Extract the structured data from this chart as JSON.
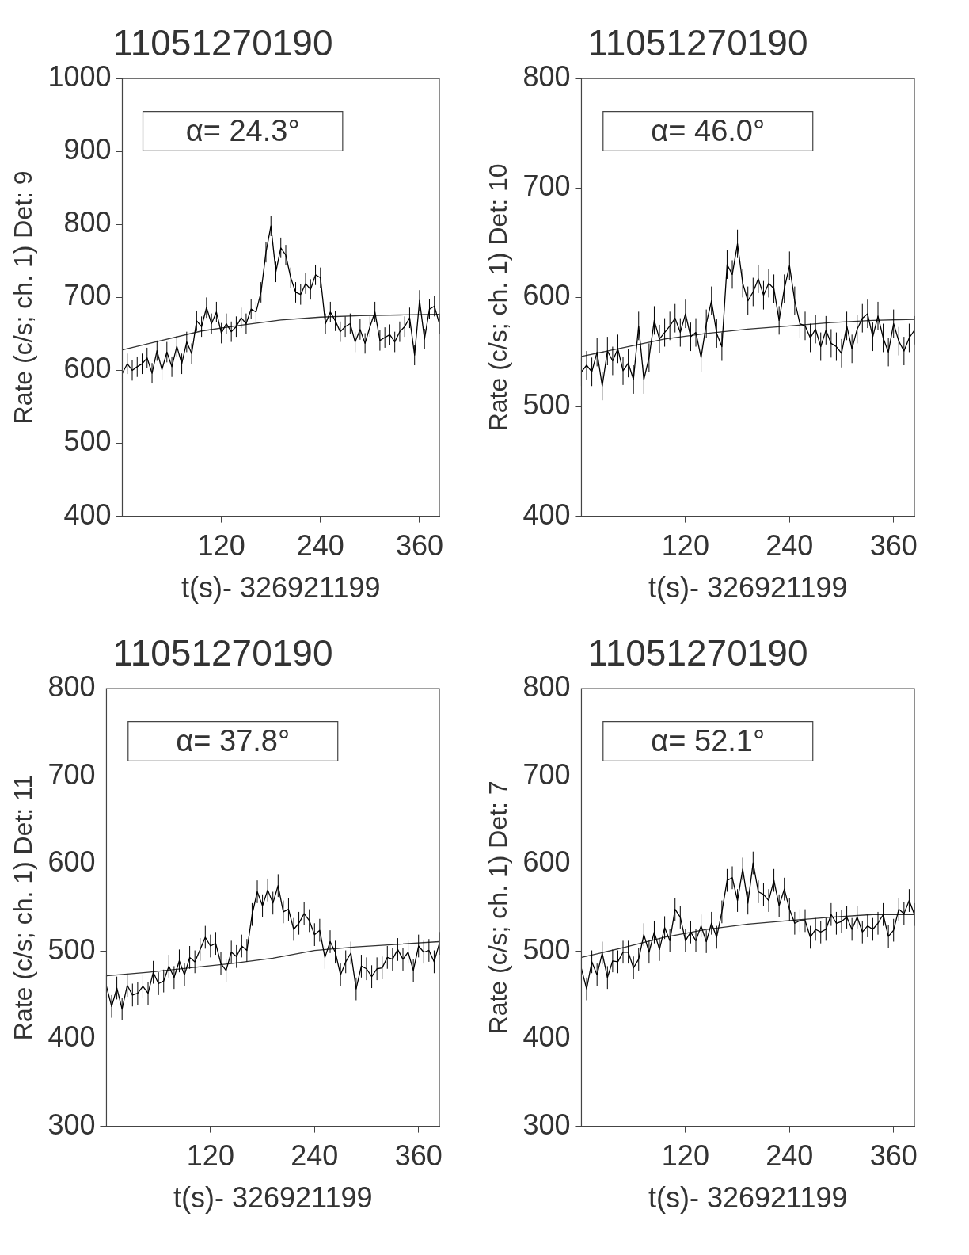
{
  "chart_data": [
    {
      "type": "line",
      "title": "11051270190",
      "xlabel": "t(s)- 326921199",
      "ylabel": "Rate (c/s; ch. 1) Det: 9",
      "annotations": [
        "α= 24.3°"
      ],
      "xlim": [
        0,
        384
      ],
      "xticks": [
        120,
        240,
        360
      ],
      "ylim": [
        400,
        1000
      ],
      "yticks": [
        400,
        500,
        600,
        700,
        800,
        900,
        1000
      ],
      "marker": "none",
      "line_style": "solid",
      "series": [
        {
          "type": "line",
          "color": "#000000",
          "x": [
            0,
            6,
            12,
            18,
            24,
            30,
            36,
            42,
            48,
            54,
            60,
            66,
            72,
            78,
            84,
            90,
            96,
            102,
            108,
            114,
            120,
            126,
            132,
            138,
            144,
            150,
            156,
            162,
            168,
            174,
            180,
            186,
            192,
            198,
            204,
            210,
            216,
            222,
            228,
            234,
            240,
            246,
            252,
            258,
            264,
            270,
            276,
            282,
            288,
            294,
            300,
            306,
            312,
            318,
            324,
            330,
            336,
            342,
            348,
            354,
            360,
            366,
            372,
            378,
            384
          ],
          "values": [
            596,
            609,
            600,
            605,
            609,
            617,
            596,
            627,
            601,
            625,
            605,
            633,
            609,
            639,
            623,
            668,
            660,
            686,
            664,
            680,
            651,
            664,
            653,
            660,
            672,
            664,
            684,
            680,
            707,
            762,
            798,
            735,
            768,
            758,
            727,
            707,
            704,
            719,
            711,
            731,
            727,
            664,
            680,
            668,
            653,
            660,
            664,
            639,
            656,
            637,
            660,
            680,
            641,
            645,
            649,
            639,
            653,
            660,
            672,
            621,
            696,
            643,
            684,
            688,
            664
          ],
          "errors": [
            14,
            14,
            14,
            14,
            14,
            14,
            14,
            14,
            14,
            14,
            14,
            14,
            14,
            14,
            14,
            14,
            14,
            14,
            14,
            14,
            14,
            14,
            14,
            14,
            14,
            14,
            14,
            14,
            14,
            14,
            14,
            14,
            14,
            14,
            14,
            14,
            14,
            14,
            14,
            14,
            14,
            14,
            14,
            14,
            14,
            14,
            14,
            14,
            14,
            14,
            14,
            14,
            14,
            14,
            14,
            14,
            14,
            14,
            14,
            14,
            14,
            14,
            14,
            14,
            14
          ]
        },
        {
          "type": "line",
          "color": "#333333",
          "x": [
            0,
            48,
            96,
            144,
            192,
            240,
            288,
            336,
            384
          ],
          "values": [
            628,
            641,
            654,
            662,
            669,
            673,
            675,
            676,
            677
          ]
        }
      ]
    },
    {
      "type": "line",
      "title": "11051270190",
      "xlabel": "t(s)- 326921199",
      "ylabel": "Rate (c/s; ch. 1) Det: 10",
      "annotations": [
        "α= 46.0°"
      ],
      "xlim": [
        0,
        384
      ],
      "xticks": [
        120,
        240,
        360
      ],
      "ylim": [
        400,
        800
      ],
      "yticks": [
        400,
        500,
        600,
        700,
        800
      ],
      "marker": "none",
      "line_style": "solid",
      "series": [
        {
          "type": "line",
          "color": "#000000",
          "x": [
            0,
            6,
            12,
            18,
            24,
            30,
            36,
            42,
            48,
            54,
            60,
            66,
            72,
            78,
            84,
            90,
            96,
            102,
            108,
            114,
            120,
            126,
            132,
            138,
            144,
            150,
            156,
            162,
            168,
            174,
            180,
            186,
            192,
            198,
            204,
            210,
            216,
            222,
            228,
            234,
            240,
            246,
            252,
            258,
            264,
            270,
            276,
            282,
            288,
            294,
            300,
            306,
            312,
            318,
            324,
            330,
            336,
            342,
            348,
            354,
            360,
            366,
            372,
            378,
            384
          ],
          "values": [
            532,
            538,
            532,
            550,
            519,
            551,
            542,
            553,
            533,
            540,
            525,
            574,
            525,
            545,
            579,
            562,
            568,
            574,
            581,
            568,
            585,
            564,
            568,
            545,
            576,
            597,
            567,
            555,
            630,
            621,
            649,
            613,
            597,
            605,
            617,
            602,
            613,
            608,
            579,
            608,
            629,
            597,
            576,
            574,
            563,
            571,
            555,
            570,
            558,
            555,
            549,
            574,
            553,
            571,
            581,
            585,
            564,
            583,
            563,
            550,
            576,
            560,
            551,
            563,
            570
          ],
          "errors": [
            13,
            13,
            13,
            13,
            13,
            13,
            13,
            13,
            13,
            13,
            13,
            13,
            13,
            13,
            13,
            13,
            13,
            13,
            13,
            13,
            13,
            13,
            13,
            13,
            13,
            13,
            13,
            13,
            13,
            13,
            13,
            13,
            13,
            13,
            13,
            13,
            13,
            13,
            13,
            13,
            13,
            13,
            13,
            13,
            13,
            13,
            13,
            13,
            13,
            13,
            13,
            13,
            13,
            13,
            13,
            13,
            13,
            13,
            13,
            13,
            13,
            13,
            13,
            13,
            13
          ]
        },
        {
          "type": "line",
          "color": "#333333",
          "x": [
            0,
            48,
            96,
            144,
            192,
            240,
            288,
            336,
            384
          ],
          "values": [
            546,
            554,
            562,
            567,
            571,
            574,
            577,
            579,
            580
          ]
        }
      ]
    },
    {
      "type": "line",
      "title": "11051270190",
      "xlabel": "t(s)- 326921199",
      "ylabel": "Rate (c/s; ch. 1) Det: 11",
      "annotations": [
        "α= 37.8°"
      ],
      "xlim": [
        0,
        384
      ],
      "xticks": [
        120,
        240,
        360
      ],
      "ylim": [
        300,
        800
      ],
      "yticks": [
        300,
        400,
        500,
        600,
        700,
        800
      ],
      "marker": "none",
      "line_style": "solid",
      "series": [
        {
          "type": "line",
          "color": "#000000",
          "x": [
            0,
            6,
            12,
            18,
            24,
            30,
            36,
            42,
            48,
            54,
            60,
            66,
            72,
            78,
            84,
            90,
            96,
            102,
            108,
            114,
            120,
            126,
            132,
            138,
            144,
            150,
            156,
            162,
            168,
            174,
            180,
            186,
            192,
            198,
            204,
            210,
            216,
            222,
            228,
            234,
            240,
            246,
            252,
            258,
            264,
            270,
            276,
            282,
            288,
            294,
            300,
            306,
            312,
            318,
            324,
            330,
            336,
            342,
            348,
            354,
            360,
            366,
            372,
            378,
            384
          ],
          "values": [
            460,
            437,
            458,
            434,
            461,
            450,
            452,
            460,
            452,
            476,
            463,
            466,
            483,
            470,
            489,
            473,
            493,
            488,
            502,
            516,
            506,
            509,
            486,
            478,
            499,
            494,
            506,
            501,
            542,
            568,
            552,
            570,
            555,
            575,
            545,
            548,
            525,
            532,
            543,
            535,
            519,
            524,
            493,
            511,
            499,
            473,
            488,
            498,
            457,
            483,
            480,
            471,
            480,
            481,
            493,
            491,
            502,
            491,
            499,
            478,
            506,
            499,
            501,
            488,
            509
          ],
          "errors": [
            13,
            13,
            13,
            13,
            13,
            13,
            13,
            13,
            13,
            13,
            13,
            13,
            13,
            13,
            13,
            13,
            13,
            13,
            13,
            13,
            13,
            13,
            13,
            13,
            13,
            13,
            13,
            13,
            13,
            13,
            13,
            13,
            13,
            13,
            13,
            13,
            13,
            13,
            13,
            13,
            13,
            13,
            13,
            13,
            13,
            13,
            13,
            13,
            13,
            13,
            13,
            13,
            13,
            13,
            13,
            13,
            13,
            13,
            13,
            13,
            13,
            13,
            13,
            13,
            13
          ]
        },
        {
          "type": "line",
          "color": "#333333",
          "x": [
            0,
            48,
            96,
            144,
            192,
            240,
            288,
            336,
            384
          ],
          "values": [
            472,
            476,
            481,
            486,
            492,
            501,
            505,
            508,
            511
          ]
        }
      ]
    },
    {
      "type": "line",
      "title": "11051270190",
      "xlabel": "t(s)- 326921199",
      "ylabel": "Rate (c/s; ch. 1) Det: 7",
      "annotations": [
        "α= 52.1°"
      ],
      "xlim": [
        0,
        384
      ],
      "xticks": [
        120,
        240,
        360
      ],
      "ylim": [
        300,
        800
      ],
      "yticks": [
        300,
        400,
        500,
        600,
        700,
        800
      ],
      "marker": "none",
      "line_style": "solid",
      "series": [
        {
          "type": "line",
          "color": "#000000",
          "x": [
            0,
            6,
            12,
            18,
            24,
            30,
            36,
            42,
            48,
            54,
            60,
            66,
            72,
            78,
            84,
            90,
            96,
            102,
            108,
            114,
            120,
            126,
            132,
            138,
            144,
            150,
            156,
            162,
            168,
            174,
            180,
            186,
            192,
            198,
            204,
            210,
            216,
            222,
            228,
            234,
            240,
            246,
            252,
            258,
            264,
            270,
            276,
            282,
            288,
            294,
            300,
            306,
            312,
            318,
            324,
            330,
            336,
            342,
            348,
            354,
            360,
            366,
            372,
            378,
            384
          ],
          "values": [
            480,
            457,
            488,
            473,
            498,
            470,
            489,
            488,
            499,
            499,
            481,
            491,
            519,
            499,
            522,
            502,
            527,
            512,
            548,
            539,
            512,
            522,
            512,
            529,
            511,
            532,
            516,
            545,
            581,
            584,
            558,
            594,
            555,
            601,
            568,
            565,
            558,
            581,
            552,
            571,
            548,
            532,
            535,
            535,
            516,
            525,
            522,
            525,
            542,
            532,
            534,
            539,
            525,
            539,
            522,
            529,
            525,
            532,
            542,
            517,
            524,
            548,
            543,
            558,
            542
          ],
          "errors": [
            13,
            13,
            13,
            13,
            13,
            13,
            13,
            13,
            13,
            13,
            13,
            13,
            13,
            13,
            13,
            13,
            13,
            13,
            13,
            13,
            13,
            13,
            13,
            13,
            13,
            13,
            13,
            13,
            13,
            13,
            13,
            13,
            13,
            13,
            13,
            13,
            13,
            13,
            13,
            13,
            13,
            13,
            13,
            13,
            13,
            13,
            13,
            13,
            13,
            13,
            13,
            13,
            13,
            13,
            13,
            13,
            13,
            13,
            13,
            13,
            13,
            13,
            13,
            13,
            13
          ]
        },
        {
          "type": "line",
          "color": "#333333",
          "x": [
            0,
            48,
            96,
            144,
            192,
            240,
            288,
            336,
            384
          ],
          "values": [
            493,
            504,
            516,
            525,
            531,
            535,
            539,
            542,
            542
          ]
        }
      ]
    }
  ]
}
